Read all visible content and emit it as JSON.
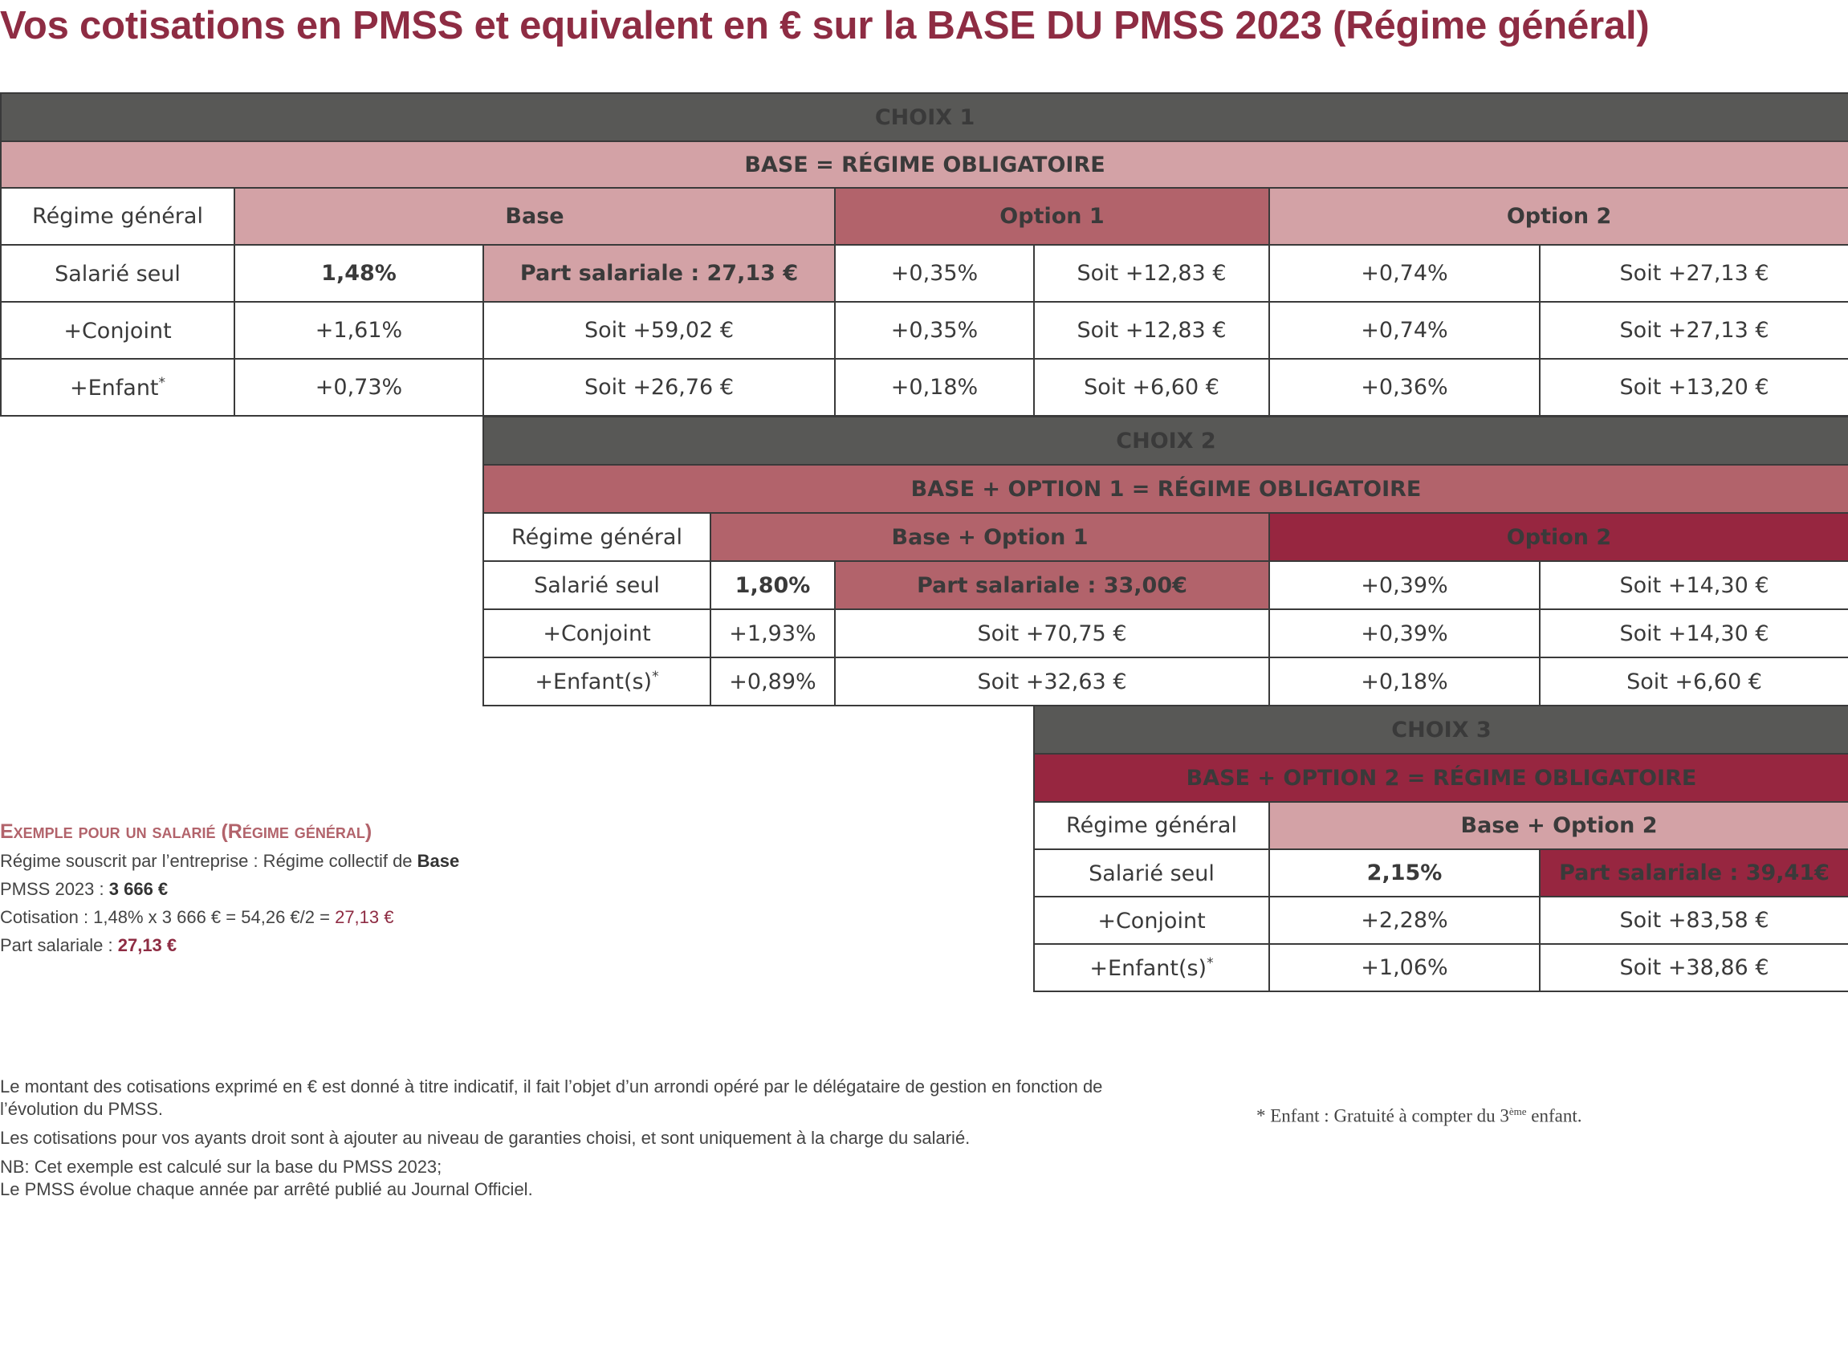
{
  "title": "Vos cotisations en PMSS et equivalent en € sur la BASE DU PMSS 2023 (Régime général)",
  "choix1": {
    "heading": "CHOIX 1",
    "subheading": "BASE = RÉGIME OBLIGATOIRE",
    "header": {
      "label": "Régime général",
      "base": "Base",
      "option1": "Option 1",
      "option2": "Option 2"
    },
    "rows": [
      {
        "label": "Salarié seul",
        "label_sup": "",
        "base_rate": "1,48%",
        "base_amount": "Part salariale : 27,13 €",
        "opt1_rate": "+0,35%",
        "opt1_amount": "Soit +12,83 €",
        "opt2_rate": "+0,74%",
        "opt2_amount": "Soit +27,13 €"
      },
      {
        "label": "+Conjoint",
        "label_sup": "",
        "base_rate": "+1,61%",
        "base_amount": "Soit +59,02 €",
        "opt1_rate": "+0,35%",
        "opt1_amount": "Soit +12,83 €",
        "opt2_rate": "+0,74%",
        "opt2_amount": "Soit +27,13 €"
      },
      {
        "label": "+Enfant",
        "label_sup": "*",
        "base_rate": "+0,73%",
        "base_amount": "Soit +26,76 €",
        "opt1_rate": "+0,18%",
        "opt1_amount": "Soit +6,60 €",
        "opt2_rate": "+0,36%",
        "opt2_amount": "Soit +13,20 €"
      }
    ]
  },
  "choix2": {
    "heading": "CHOIX 2",
    "subheading": "BASE + OPTION 1 = RÉGIME OBLIGATOIRE",
    "header": {
      "label": "Régime général",
      "base": "Base + Option 1",
      "option2": "Option 2"
    },
    "rows": [
      {
        "label": "Salarié seul",
        "label_sup": "",
        "base_rate": "1,80%",
        "base_amount": "Part salariale : 33,00€",
        "opt2_rate": "+0,39%",
        "opt2_amount": "Soit +14,30 €"
      },
      {
        "label": "+Conjoint",
        "label_sup": "",
        "base_rate": "+1,93%",
        "base_amount": "Soit +70,75 €",
        "opt2_rate": "+0,39%",
        "opt2_amount": "Soit +14,30 €"
      },
      {
        "label": "+Enfant(s)",
        "label_sup": "*",
        "base_rate": "+0,89%",
        "base_amount": "Soit +32,63 €",
        "opt2_rate": "+0,18%",
        "opt2_amount": "Soit +6,60 €"
      }
    ]
  },
  "choix3": {
    "heading": "CHOIX 3",
    "subheading": "BASE + OPTION 2 = RÉGIME OBLIGATOIRE",
    "header": {
      "label": "Régime général",
      "base": "Base + Option 2"
    },
    "rows": [
      {
        "label": "Salarié seul",
        "label_sup": "",
        "base_rate": "2,15%",
        "base_amount": "Part salariale : 39,41€"
      },
      {
        "label": "+Conjoint",
        "label_sup": "",
        "base_rate": "+2,28%",
        "base_amount": "Soit +83,58 €"
      },
      {
        "label": "+Enfant(s)",
        "label_sup": "*",
        "base_rate": "+1,06%",
        "base_amount": "Soit +38,86 €"
      }
    ]
  },
  "example": {
    "title": "Exemple pour un salarié (Régime général)",
    "line1_prefix": "Régime souscrit par l’entreprise : Régime collectif de ",
    "line1_bold": "Base",
    "line2_prefix": "PMSS 2023 : ",
    "line2_bold": "3 666 €",
    "line3_prefix": "Cotisation : 1,48% x 3 666 € = 54,26 €/2 = ",
    "line3_value": "27,13 €",
    "line4_prefix": "Part salariale : ",
    "line4_value": "27,13 €"
  },
  "notes": {
    "p1": "Le montant des cotisations exprimé en € est donné à titre indicatif, il fait l’objet d’un arrondi opéré par le délégataire de gestion en fonction de l’évolution du PMSS.",
    "p2": "Les cotisations pour vos ayants droit sont à ajouter au niveau de garanties choisi, et sont uniquement à la charge du salarié.",
    "p3_line1": "NB: Cet exemple est calculé sur la base du PMSS 2023;",
    "p3_line2": "Le PMSS évolue chaque année par arrêté publié au Journal Officiel."
  },
  "footnote": {
    "prefix": "* Enfant : Gratuité à compter du 3",
    "sup": "ème",
    "suffix": " enfant."
  },
  "colors": {
    "title": "#8e2c43",
    "header_dark": "#585856",
    "base_light": "#d3a2a6",
    "option1_mid": "#b2636b",
    "option2_deep": "#972640"
  }
}
